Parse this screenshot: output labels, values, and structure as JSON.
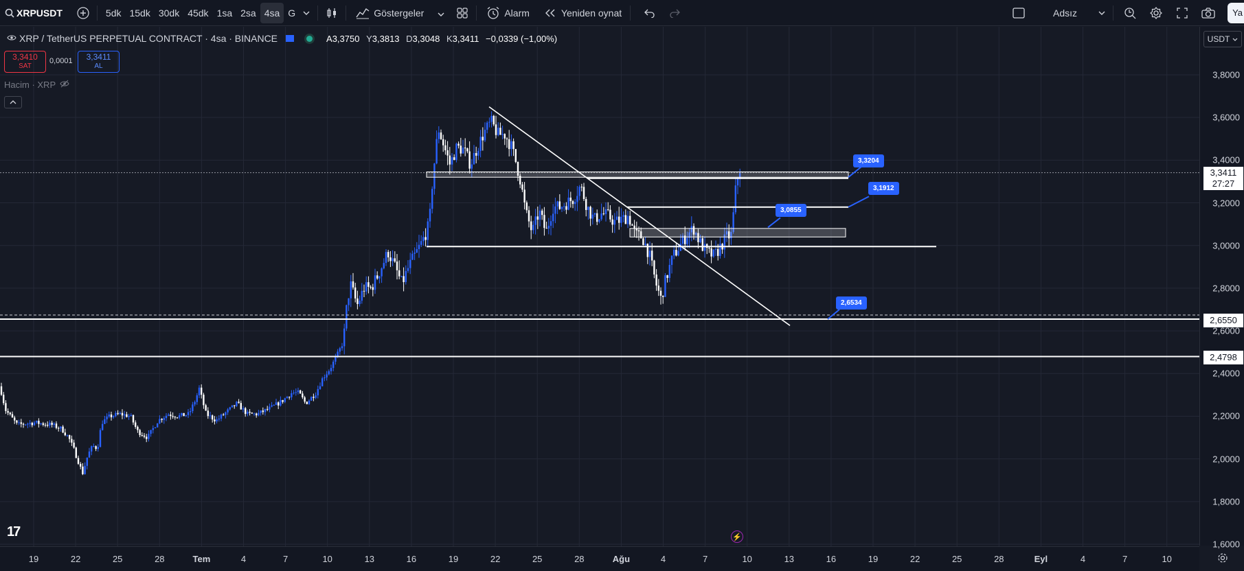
{
  "topbar": {
    "symbol": "XRPUSDT",
    "intervals": [
      "5dk",
      "15dk",
      "30dk",
      "45dk",
      "1sa",
      "2sa",
      "4sa",
      "G"
    ],
    "active_interval": "4sa",
    "indicators_label": "Göstergeler",
    "alarm_label": "Alarm",
    "replay_label": "Yeniden oynat",
    "layout_name": "Adsız",
    "user_initial": "Ya"
  },
  "legend": {
    "title": "XRP / TetherUS PERPETUAL CONTRACT · 4sa · BINANCE",
    "open_label": "A",
    "open": "3,3750",
    "high_label": "Y",
    "high": "3,3813",
    "low_label": "D",
    "low": "3,3048",
    "close_label": "K",
    "close": "3,3411",
    "change": "−0,0339 (−1,00%)"
  },
  "trade": {
    "sell_price": "3,3410",
    "sell_label": "SAT",
    "spread": "0,0001",
    "buy_price": "3,3411",
    "buy_label": "AL"
  },
  "volume_label": "Hacim · XRP",
  "price_scale": {
    "currency": "USDT",
    "ticks": [
      "3,8000",
      "3,6000",
      "3,4000",
      "3,2000",
      "3,0000",
      "2,8000",
      "2,6000",
      "2,4000",
      "2,2000",
      "2,0000",
      "1,8000",
      "1,6000"
    ],
    "current_price": "3,3411",
    "countdown": "27:27",
    "level_labels": [
      "2,6550",
      "2,4798"
    ]
  },
  "callouts": [
    "3,3204",
    "3,1912",
    "3,0855",
    "2,6534"
  ],
  "time_scale": {
    "ticks": [
      "19",
      "22",
      "25",
      "28",
      "Tem",
      "4",
      "7",
      "10",
      "13",
      "16",
      "19",
      "22",
      "25",
      "28",
      "Ağu",
      "4",
      "7",
      "10",
      "13",
      "16",
      "19",
      "22",
      "25",
      "28",
      "Eyl",
      "4",
      "7",
      "10"
    ]
  },
  "colors": {
    "up": "#2962ff",
    "down": "#ffffff",
    "background": "#161a25",
    "accent": "#2962ff",
    "sell": "#f23645"
  },
  "icons": [
    "search-icon",
    "add-symbol-icon",
    "chevron-down-icon",
    "candle-style-icon",
    "indicators-icon",
    "templates-icon",
    "alarm-icon",
    "replay-icon",
    "undo-icon",
    "redo-icon",
    "layout-icon",
    "quick-search-icon",
    "settings-icon",
    "fullscreen-icon",
    "camera-icon",
    "eye-off-icon",
    "flash-icon"
  ],
  "chart_data": {
    "type": "candlestick",
    "ylim": [
      1.6,
      3.86
    ],
    "x_dates": [
      "Jun 16",
      "Sep 10"
    ],
    "candles": [],
    "drawings": {
      "horizontal_levels": [
        2.655,
        2.4798
      ],
      "range_boxes": [
        [
          3.32,
          3.345
        ],
        [
          3.04,
          3.08
        ]
      ],
      "support_line": 2.995,
      "ray": 3.18
    }
  }
}
